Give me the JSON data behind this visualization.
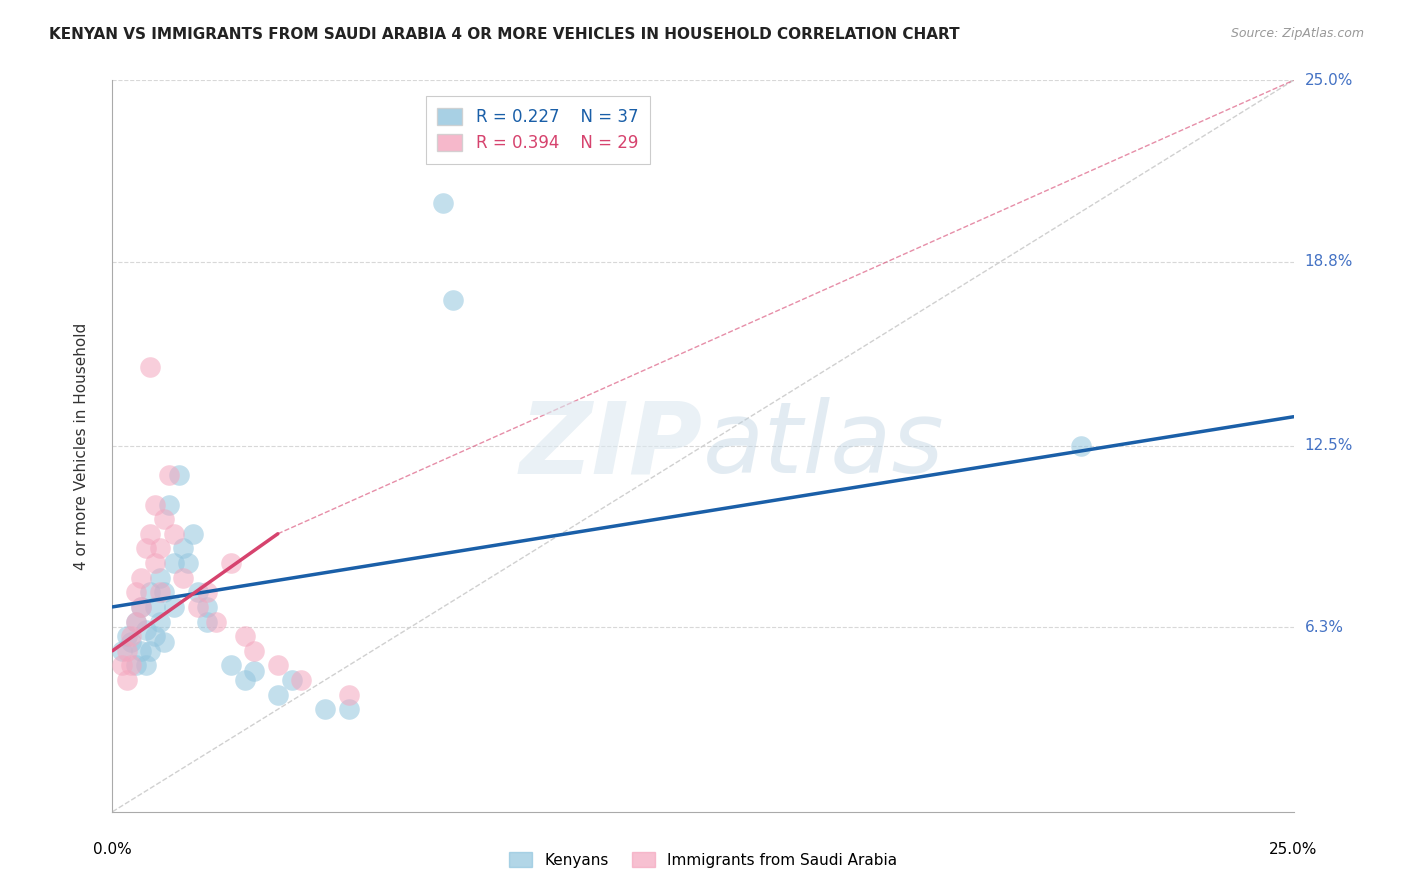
{
  "title": "KENYAN VS IMMIGRANTS FROM SAUDI ARABIA 4 OR MORE VEHICLES IN HOUSEHOLD CORRELATION CHART",
  "source": "Source: ZipAtlas.com",
  "ylabel": "4 or more Vehicles in Household",
  "xlim": [
    0,
    25
  ],
  "ylim": [
    0,
    25
  ],
  "yticks": [
    0,
    6.3,
    12.5,
    18.8,
    25.0
  ],
  "ytick_labels": [
    "",
    "6.3%",
    "12.5%",
    "18.8%",
    "25.0%"
  ],
  "legend_R1": "R = 0.227",
  "legend_N1": "N = 37",
  "legend_R2": "R = 0.394",
  "legend_N2": "N = 29",
  "color_blue": "#92c5de",
  "color_pink": "#f4a6be",
  "color_blue_line": "#1a5fa8",
  "color_pink_line": "#d6436e",
  "color_diag": "#d0d0d0",
  "watermark_zip": "ZIP",
  "watermark_atlas": "atlas",
  "blue_points_x": [
    0.2,
    0.3,
    0.4,
    0.5,
    0.5,
    0.6,
    0.6,
    0.7,
    0.7,
    0.8,
    0.8,
    0.9,
    0.9,
    1.0,
    1.0,
    1.1,
    1.1,
    1.2,
    1.3,
    1.3,
    1.4,
    1.5,
    1.6,
    1.7,
    1.8,
    2.0,
    2.0,
    2.5,
    2.8,
    3.0,
    3.5,
    3.8,
    4.5,
    5.0,
    7.0,
    7.2,
    20.5
  ],
  "blue_points_y": [
    5.5,
    6.0,
    5.8,
    6.5,
    5.0,
    7.0,
    5.5,
    6.2,
    5.0,
    7.5,
    5.5,
    6.0,
    7.0,
    8.0,
    6.5,
    7.5,
    5.8,
    10.5,
    8.5,
    7.0,
    11.5,
    9.0,
    8.5,
    9.5,
    7.5,
    7.0,
    6.5,
    5.0,
    4.5,
    4.8,
    4.0,
    4.5,
    3.5,
    3.5,
    20.8,
    17.5,
    12.5
  ],
  "pink_points_x": [
    0.2,
    0.3,
    0.3,
    0.4,
    0.4,
    0.5,
    0.5,
    0.6,
    0.6,
    0.7,
    0.8,
    0.9,
    0.9,
    1.0,
    1.0,
    1.1,
    1.2,
    1.3,
    1.5,
    1.8,
    2.0,
    2.2,
    2.5,
    2.8,
    3.0,
    3.5,
    4.0,
    5.0,
    0.8
  ],
  "pink_points_y": [
    5.0,
    5.5,
    4.5,
    6.0,
    5.0,
    7.5,
    6.5,
    8.0,
    7.0,
    9.0,
    9.5,
    10.5,
    8.5,
    9.0,
    7.5,
    10.0,
    11.5,
    9.5,
    8.0,
    7.0,
    7.5,
    6.5,
    8.5,
    6.0,
    5.5,
    5.0,
    4.5,
    4.0,
    15.2
  ],
  "blue_line_x0": 0,
  "blue_line_y0": 7.0,
  "blue_line_x1": 25,
  "blue_line_y1": 13.5,
  "pink_line_x0": 0,
  "pink_line_y0": 5.5,
  "pink_line_x1": 3.5,
  "pink_line_y1": 9.5,
  "pink_dash_x0": 3.5,
  "pink_dash_y0": 9.5,
  "pink_dash_x1": 25,
  "pink_dash_y1": 25
}
